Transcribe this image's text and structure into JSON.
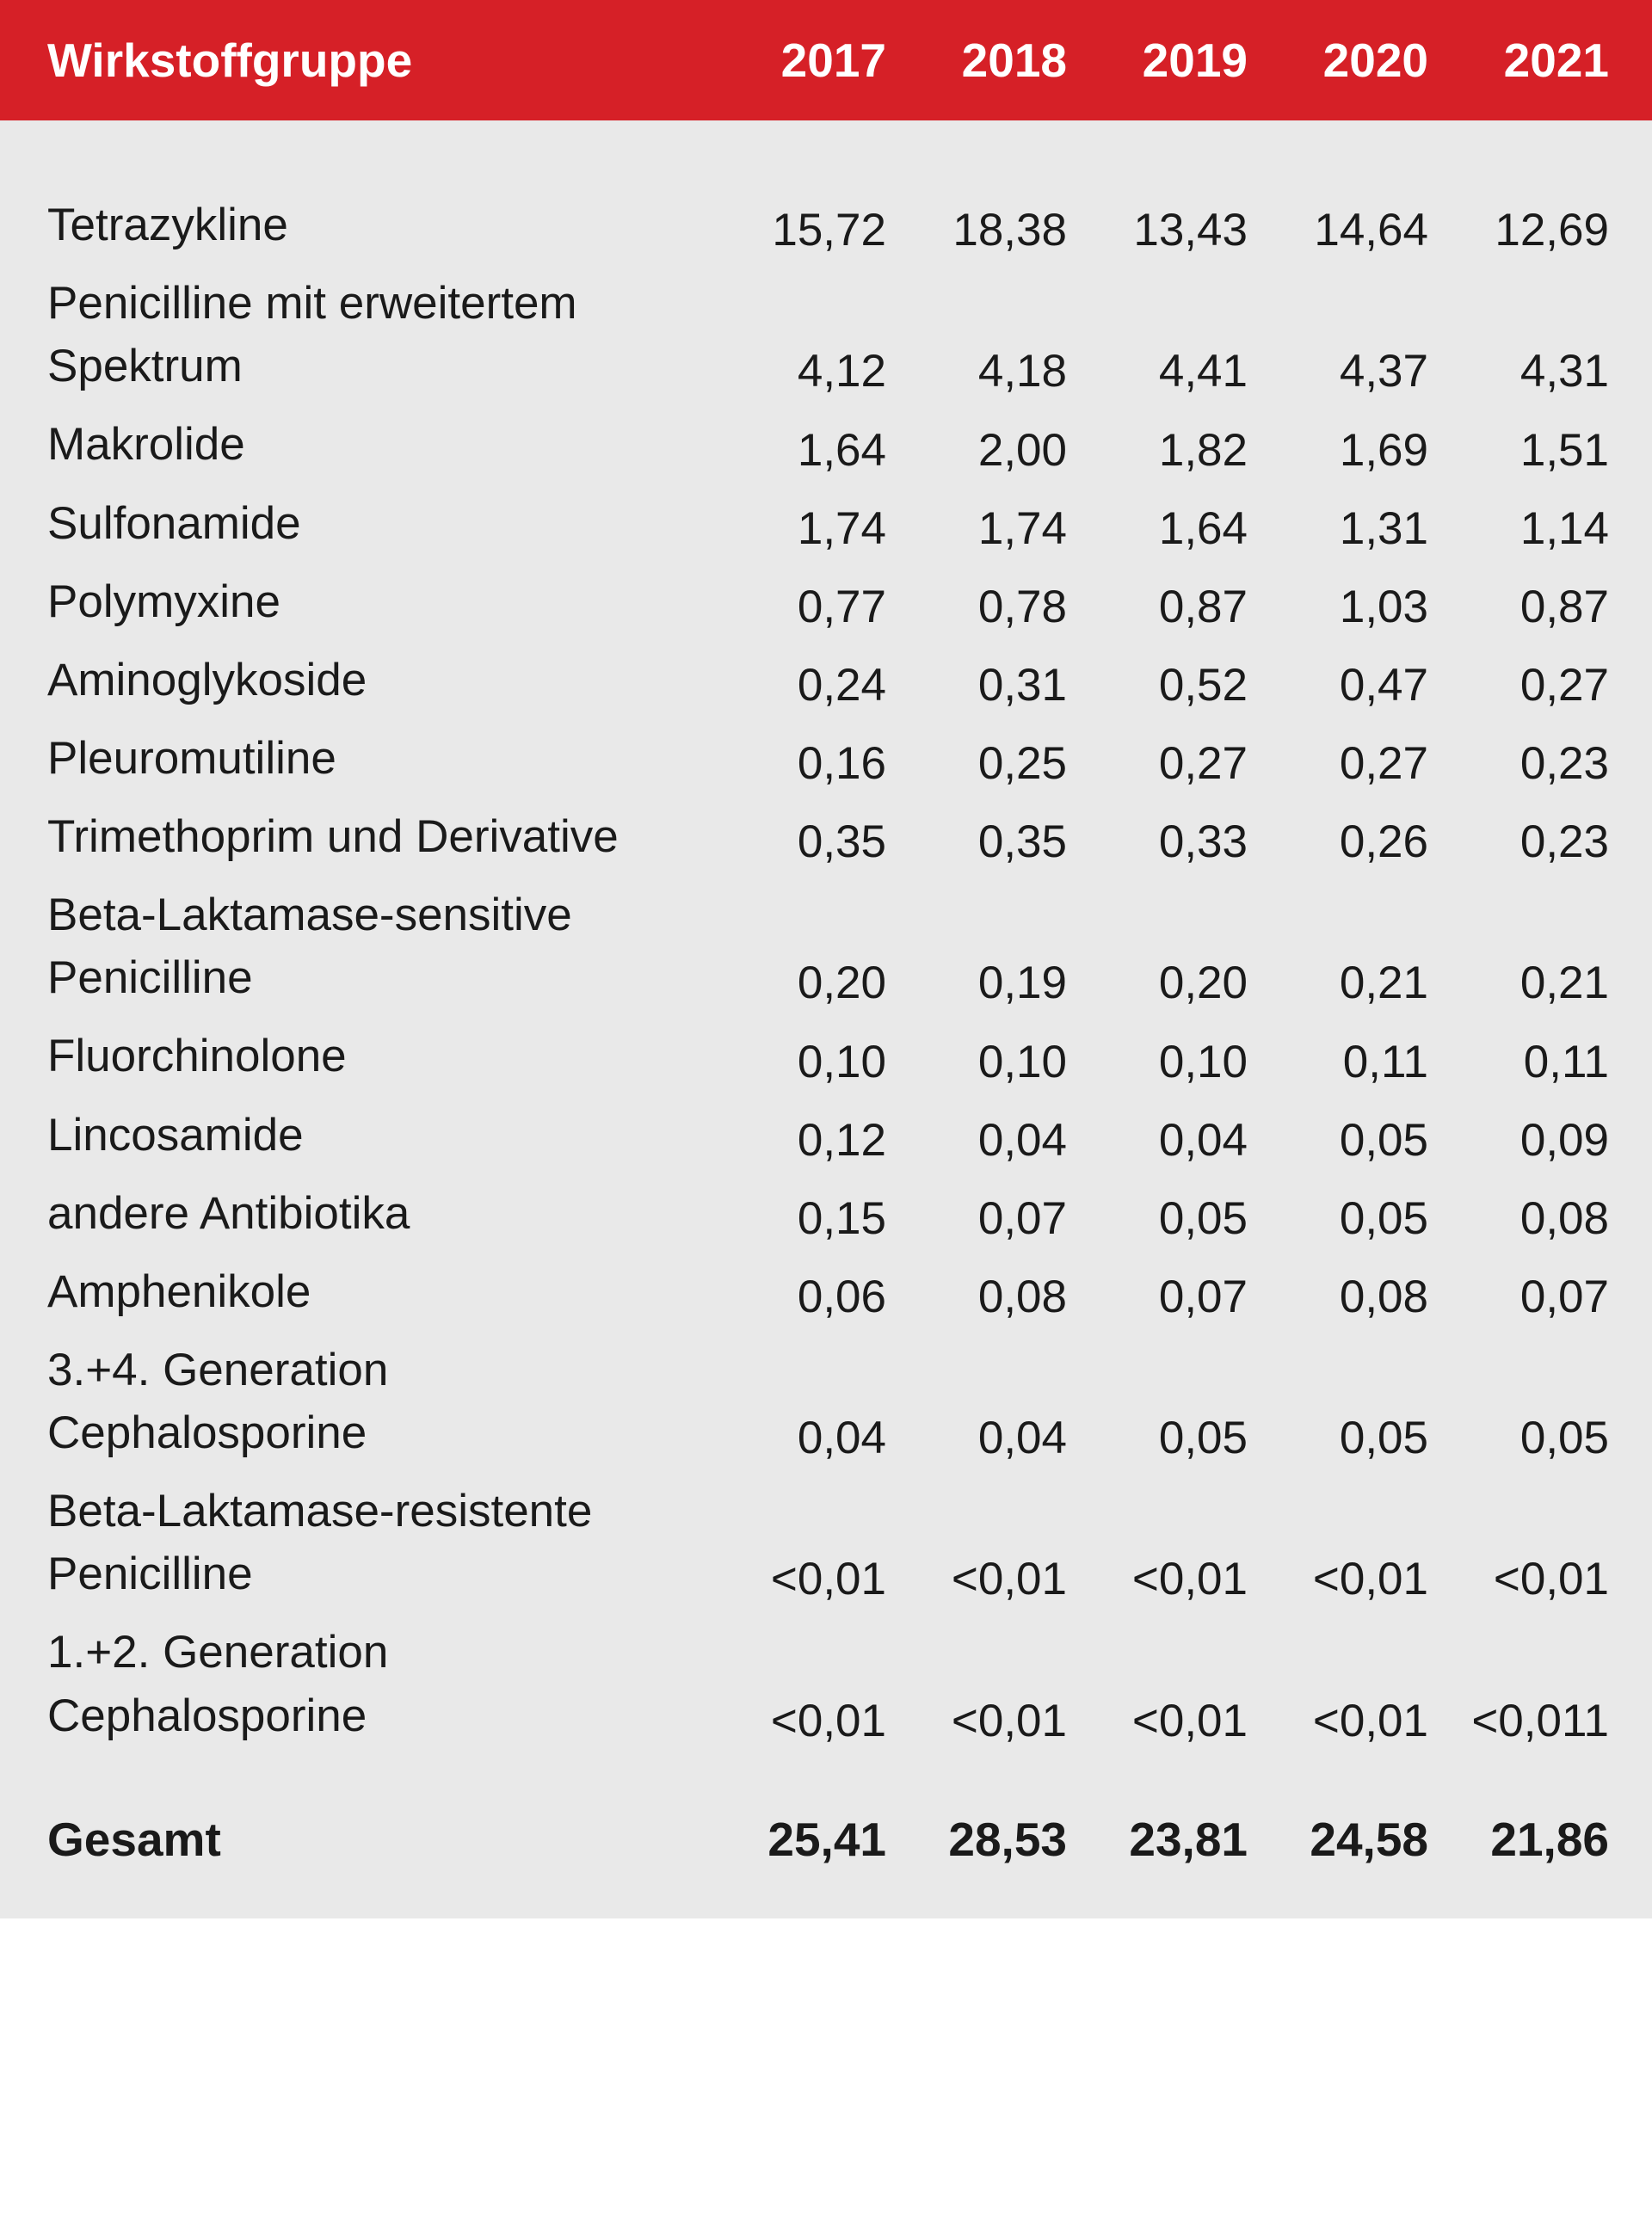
{
  "table": {
    "header": {
      "label": "Wirkstoffgruppe",
      "years": [
        "2017",
        "2018",
        "2019",
        "2020",
        "2021"
      ]
    },
    "rows": [
      {
        "label": "Tetrazykline",
        "values": [
          "15,72",
          "18,38",
          "13,43",
          "14,64",
          "12,69"
        ]
      },
      {
        "label": "Penicilline mit erweitertem Spektrum",
        "values": [
          "4,12",
          "4,18",
          "4,41",
          "4,37",
          "4,31"
        ]
      },
      {
        "label": "Makrolide",
        "values": [
          "1,64",
          "2,00",
          "1,82",
          "1,69",
          "1,51"
        ]
      },
      {
        "label": "Sulfonamide",
        "values": [
          "1,74",
          "1,74",
          "1,64",
          "1,31",
          "1,14"
        ]
      },
      {
        "label": "Polymyxine",
        "values": [
          "0,77",
          "0,78",
          "0,87",
          "1,03",
          "0,87"
        ]
      },
      {
        "label": "Aminoglykoside",
        "values": [
          "0,24",
          "0,31",
          "0,52",
          "0,47",
          "0,27"
        ]
      },
      {
        "label": "Pleuromutiline",
        "values": [
          "0,16",
          "0,25",
          "0,27",
          "0,27",
          "0,23"
        ]
      },
      {
        "label": "Trimethoprim und Derivative",
        "values": [
          "0,35",
          "0,35",
          "0,33",
          "0,26",
          "0,23"
        ]
      },
      {
        "label": "Beta-Laktamase-sensitive Penicilline",
        "values": [
          "0,20",
          "0,19",
          "0,20",
          "0,21",
          "0,21"
        ]
      },
      {
        "label": "Fluorchinolone",
        "values": [
          "0,10",
          "0,10",
          "0,10",
          "0,11",
          "0,11"
        ]
      },
      {
        "label": "Lincosamide",
        "values": [
          "0,12",
          "0,04",
          "0,04",
          "0,05",
          "0,09"
        ]
      },
      {
        "label": "andere Antibiotika",
        "values": [
          "0,15",
          "0,07",
          "0,05",
          "0,05",
          "0,08"
        ]
      },
      {
        "label": "Amphenikole",
        "values": [
          "0,06",
          "0,08",
          "0,07",
          "0,08",
          "0,07"
        ]
      },
      {
        "label": "3.+4. Generation Cephalosporine",
        "values": [
          "0,04",
          "0,04",
          "0,05",
          "0,05",
          "0,05"
        ]
      },
      {
        "label": "Beta-Laktamase-resistente Penicilline",
        "values": [
          "<0,01",
          "<0,01",
          "<0,01",
          "<0,01",
          "<0,01"
        ]
      },
      {
        "label": "1.+2. Generation Cephalosporine",
        "values": [
          "<0,01",
          "<0,01",
          "<0,01",
          "<0,01",
          "<0,011"
        ]
      }
    ],
    "total": {
      "label": "Gesamt",
      "values": [
        "25,41",
        "28,53",
        "23,81",
        "24,58",
        "21,86"
      ]
    },
    "colors": {
      "header_background": "#d62027",
      "header_text": "#ffffff",
      "body_background": "#e9e9e9",
      "body_text": "#1a1a1a"
    },
    "typography": {
      "header_fontsize": 55,
      "header_fontweight": 700,
      "body_fontsize": 53,
      "body_fontweight": 400,
      "total_fontsize": 55,
      "total_fontweight": 700
    },
    "layout": {
      "label_column_width": 765,
      "year_column_alignment": "right"
    }
  }
}
